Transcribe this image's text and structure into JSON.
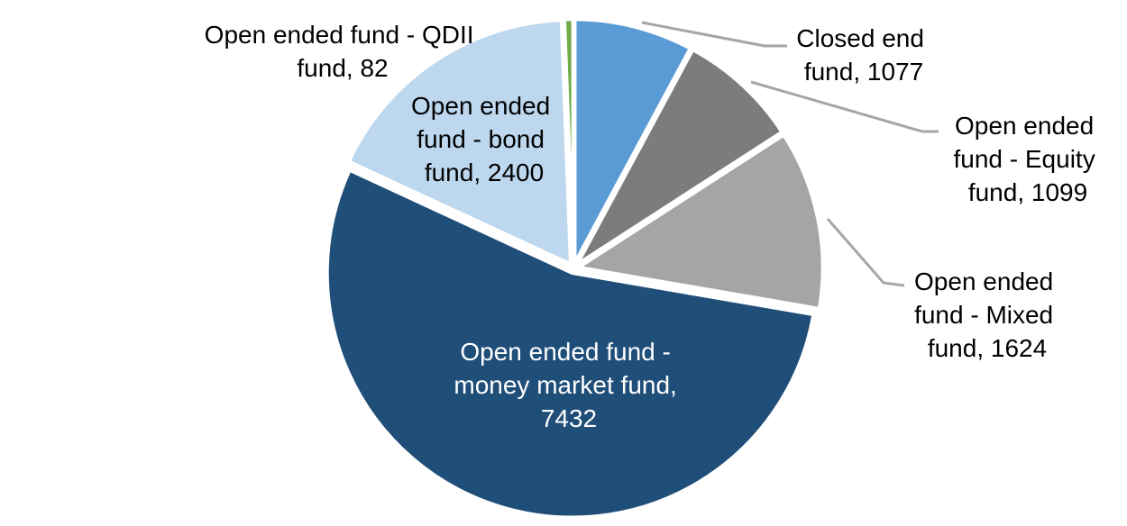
{
  "chart_data": {
    "type": "pie",
    "title": "",
    "legend": "none",
    "direction": "clockwise",
    "start_angle_deg": 0,
    "total": 13714,
    "background": "#FFFFFF",
    "leader_line_color": "#A6A6A6",
    "slices": [
      {
        "label": "Closed end fund",
        "value": 1077,
        "color": "#5B9BD5"
      },
      {
        "label": "Open ended fund - Equity fund",
        "value": 1099,
        "color": "#7C7C7C"
      },
      {
        "label": "Open ended fund - Mixed fund",
        "value": 1624,
        "color": "#A5A5A5"
      },
      {
        "label": "Open ended fund - money market fund",
        "value": 7432,
        "color": "#1F4E79"
      },
      {
        "label": "Open ended fund - bond fund",
        "value": 2400,
        "color": "#BDD7EE"
      },
      {
        "label": "Open ended fund - QDII fund",
        "value": 82,
        "color": "#70AD47"
      }
    ]
  },
  "labels": {
    "qdii": {
      "color": "#000000",
      "lines": [
        "Open ended fund - QDII",
        "fund, 82"
      ]
    },
    "bond": {
      "color": "#000000",
      "lines": [
        "Open ended",
        "fund - bond",
        "fund, 2400"
      ]
    },
    "closed": {
      "color": "#000000",
      "lines": [
        "Closed end",
        "fund, 1077"
      ]
    },
    "equity": {
      "color": "#000000",
      "lines": [
        "Open ended",
        "fund - Equity",
        "fund, 1099"
      ]
    },
    "mixed": {
      "color": "#000000",
      "lines": [
        "Open ended",
        "fund - Mixed",
        "fund, 1624"
      ]
    },
    "money": {
      "color": "#FFFFFF",
      "lines": [
        "Open ended fund -",
        "money market fund,",
        "7432"
      ]
    }
  }
}
